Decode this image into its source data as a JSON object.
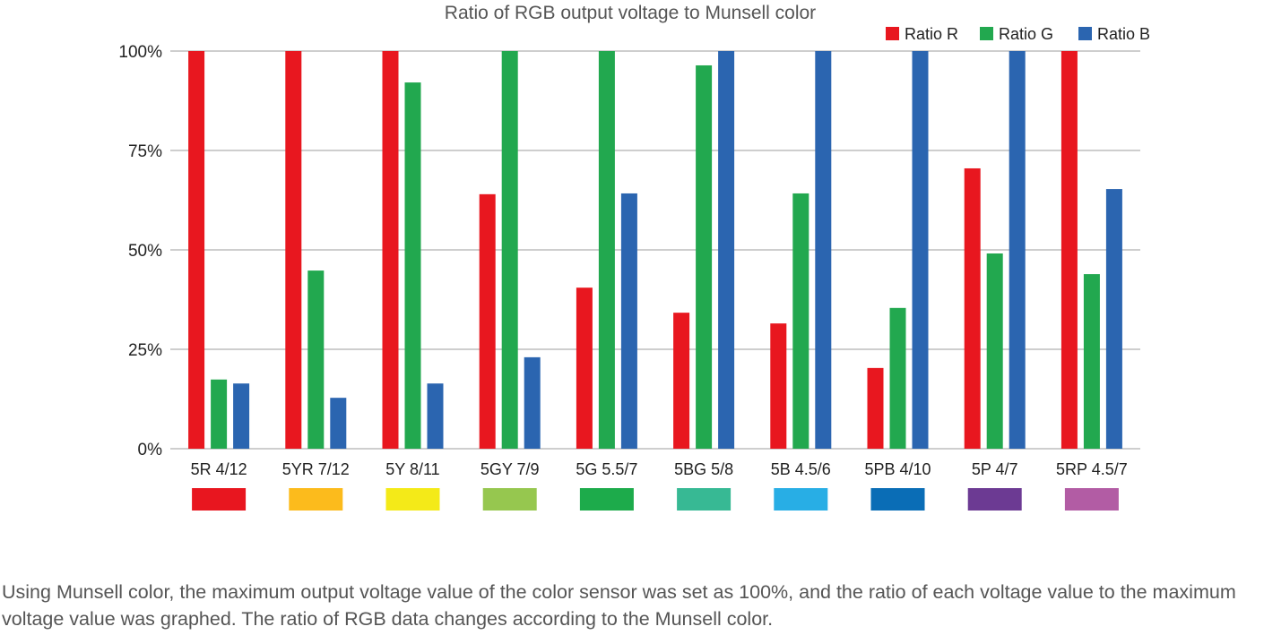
{
  "chart_data": {
    "type": "bar",
    "title": "Ratio of RGB output voltage to Munsell color",
    "xlabel": "",
    "ylabel": "",
    "ylim": [
      0,
      100
    ],
    "yticks": [
      "0%",
      "25%",
      "50%",
      "75%",
      "100%"
    ],
    "ytick_values": [
      0,
      25,
      50,
      75,
      100
    ],
    "grid": true,
    "legend_placement": "top-right",
    "categories": [
      "5R 4/12",
      "5YR 7/12",
      "5Y 8/11",
      "5GY 7/9",
      "5G 5.5/7",
      "5BG 5/8",
      "5B 4.5/6",
      "5PB 4/10",
      "5P 4/7",
      "5RP 4.5/7"
    ],
    "swatch_colors": [
      "#E8161F",
      "#FCBB1C",
      "#F4EA18",
      "#96C74F",
      "#1DAB4B",
      "#37B994",
      "#28AEE5",
      "#0A6DB6",
      "#6C3A93",
      "#B25CA4"
    ],
    "series": [
      {
        "name": "Ratio R",
        "color": "#E8171F",
        "values": [
          100,
          100,
          100,
          64,
          40.5,
          34.2,
          31.5,
          20.3,
          70.5,
          100
        ]
      },
      {
        "name": "Ratio G",
        "color": "#22A84F",
        "values": [
          17.4,
          44.8,
          92.1,
          100,
          100,
          96.4,
          64.2,
          35.4,
          49.1,
          43.9
        ]
      },
      {
        "name": "Ratio B",
        "color": "#2B65B0",
        "values": [
          16.4,
          12.8,
          16.4,
          23,
          64.2,
          100,
          100,
          100,
          100,
          65.3
        ]
      }
    ]
  },
  "caption": "Using Munsell color, the maximum output voltage value of the color sensor was set as 100%, and the ratio of each voltage value to the maximum voltage value was graphed. The ratio of RGB data changes according to the Munsell color."
}
